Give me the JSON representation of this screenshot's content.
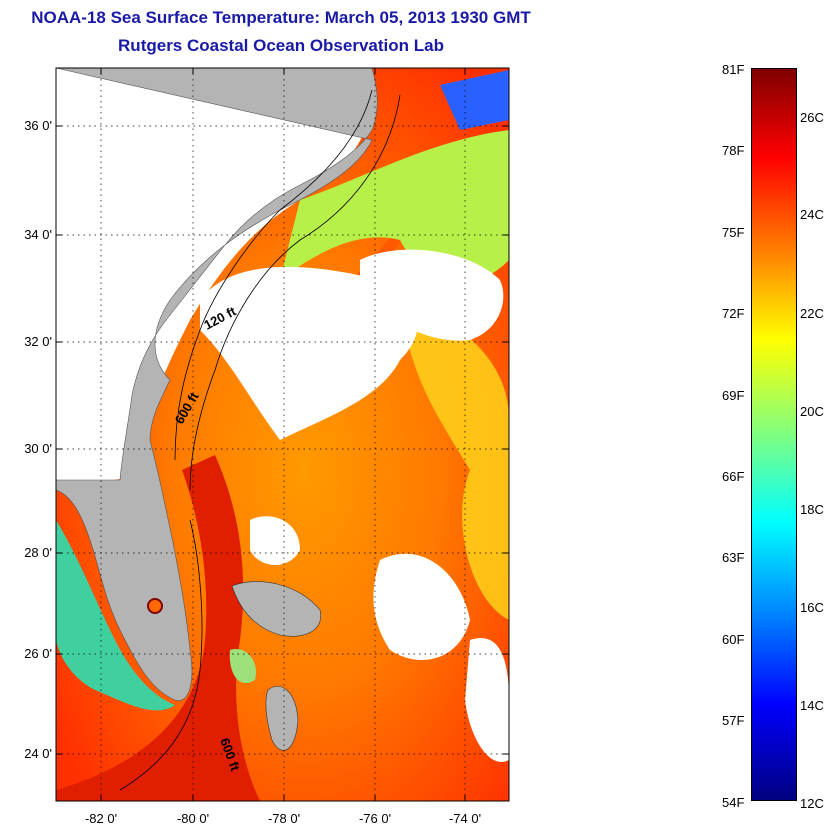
{
  "title": "NOAA-18 Sea Surface Temperature:  March 05, 2013 1930 GMT",
  "subtitle": "Rutgers Coastal Ocean Observation Lab",
  "map": {
    "lat_labels": [
      "36 0'",
      "34 0'",
      "32 0'",
      "30 0'",
      "28 0'",
      "26 0'",
      "24 0'"
    ],
    "lon_labels": [
      "-82 0'",
      "-80 0'",
      "-78 0'",
      "-76 0'",
      "-74 0'"
    ],
    "contours": [
      "120 ft",
      "600 ft",
      "600 ft"
    ],
    "land_color": "#b4b4b4",
    "cloud_color": "#ffffff"
  },
  "colorbar": {
    "fahrenheit": [
      "81F",
      "78F",
      "75F",
      "72F",
      "69F",
      "66F",
      "63F",
      "60F",
      "57F",
      "54F"
    ],
    "celsius": [
      "26C",
      "24C",
      "22C",
      "20C",
      "18C",
      "16C",
      "14C",
      "12C"
    ],
    "colors": [
      "#00007f",
      "#0000ff",
      "#0080ff",
      "#00ffff",
      "#80ff80",
      "#ffff00",
      "#ff8000",
      "#ff0000",
      "#7f0000"
    ]
  }
}
